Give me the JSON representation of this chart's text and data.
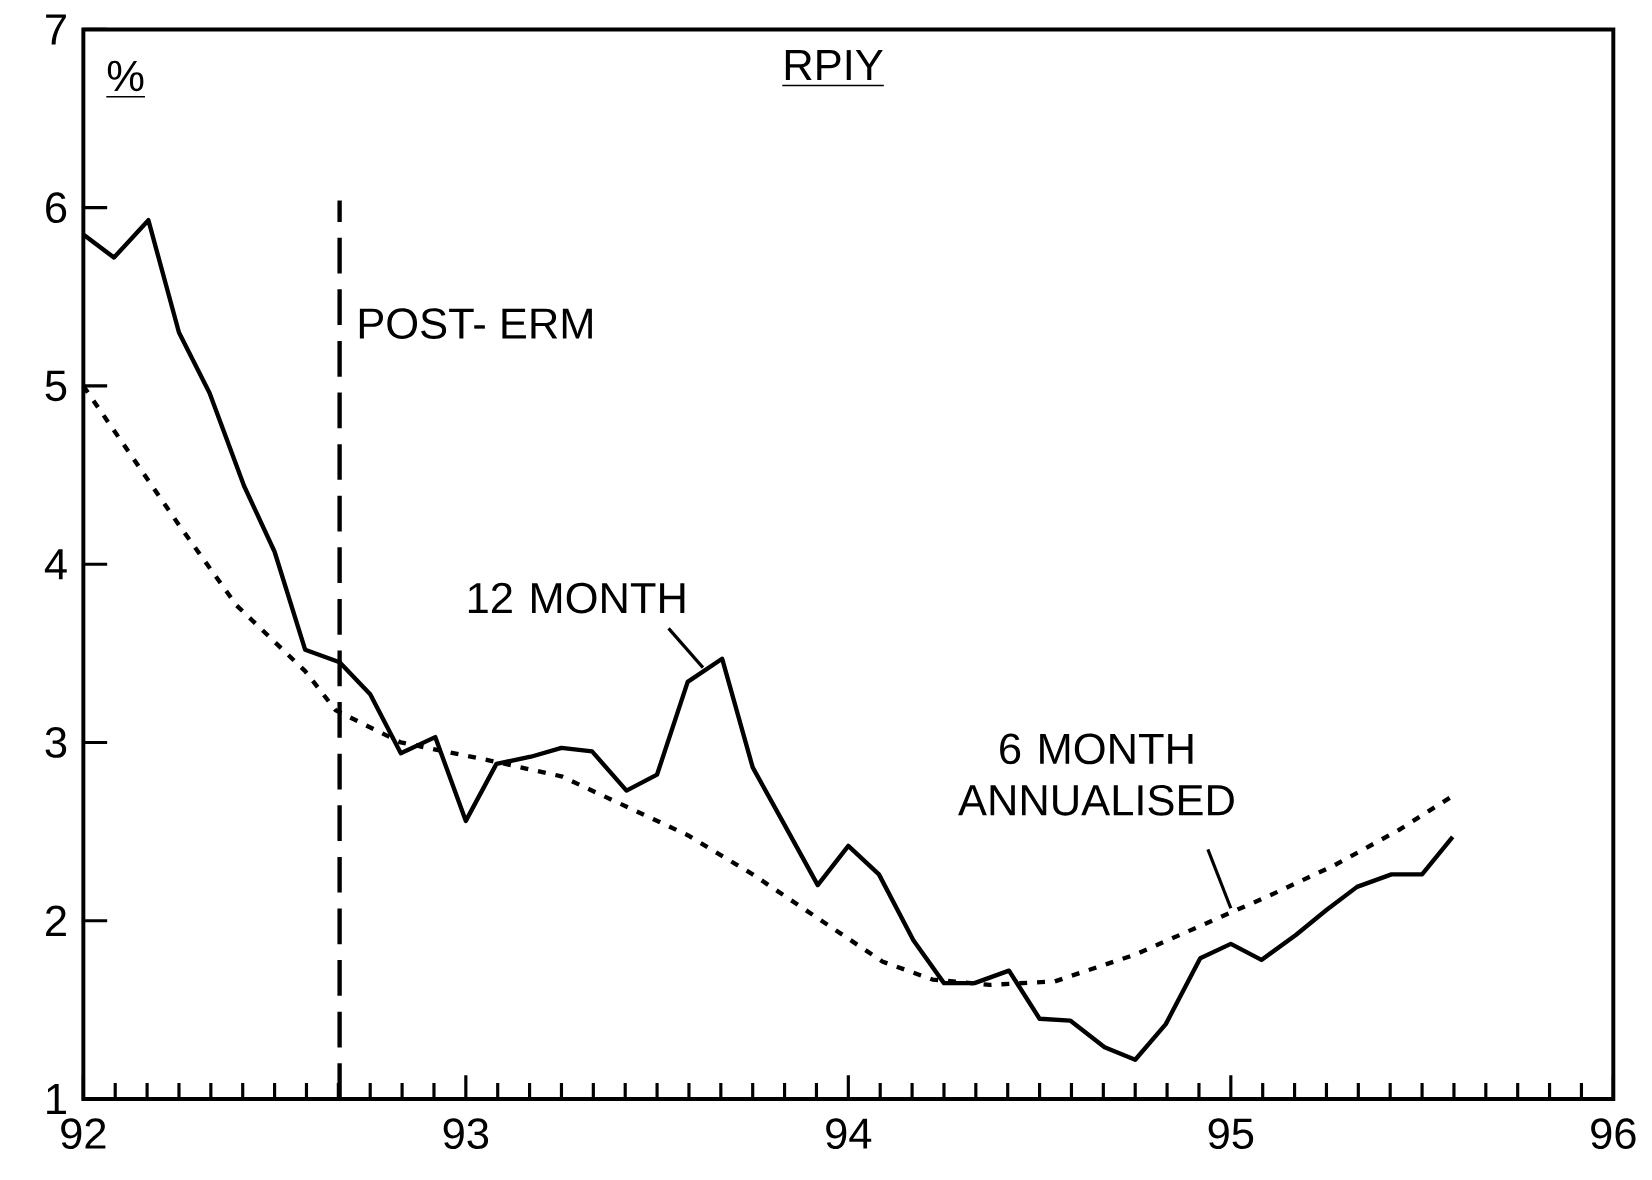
{
  "chart_data": {
    "type": "line",
    "title": "RPIY",
    "ylabel": "%",
    "xlim": [
      92,
      96
    ],
    "xticks": [
      92,
      93,
      94,
      95,
      96
    ],
    "ylim": [
      1,
      7
    ],
    "yticks": [
      1,
      2,
      3,
      4,
      5,
      6,
      7
    ],
    "grid": false,
    "series": [
      {
        "color": "#000000",
        "line_style": "solid",
        "x": [
          92,
          92.08,
          92.17,
          92.25,
          92.33,
          92.42,
          92.5,
          92.58,
          92.67,
          92.75,
          92.83,
          92.92,
          93,
          93.08,
          93.17,
          93.25,
          93.33,
          93.42,
          93.5,
          93.58,
          93.67,
          93.75,
          93.83,
          93.92,
          94,
          94.08,
          94.17,
          94.25,
          94.33,
          94.42,
          94.5,
          94.58,
          94.67,
          94.75,
          94.83,
          94.92,
          95,
          95.08,
          95.17,
          95.25,
          95.33,
          95.42,
          95.5,
          95.58
        ],
        "values": [
          5.85,
          5.72,
          5.93,
          5.3,
          4.96,
          4.44,
          4.07,
          3.52,
          3.45,
          3.27,
          2.94,
          3.03,
          2.56,
          2.88,
          2.92,
          2.97,
          2.95,
          2.73,
          2.82,
          3.34,
          3.47,
          2.86,
          2.55,
          2.2,
          2.42,
          2.26,
          1.89,
          1.65,
          1.65,
          1.72,
          1.45,
          1.44,
          1.29,
          1.22,
          1.42,
          1.79,
          1.87,
          1.78,
          1.92,
          2.06,
          2.19,
          2.26,
          2.26,
          2.47
        ]
      },
      {
        "color": "#000000",
        "line_style": "dotted",
        "x": [
          92,
          92.25,
          92.4,
          92.58,
          92.66,
          92.83,
          93.06,
          93.25,
          93.4,
          93.58,
          93.75,
          93.93,
          94.09,
          94.22,
          94.37,
          94.54,
          94.75,
          94.93,
          95.1,
          95.27,
          95.44,
          95.58
        ],
        "values": [
          5.0,
          4.22,
          3.77,
          3.4,
          3.18,
          3.0,
          2.9,
          2.81,
          2.66,
          2.48,
          2.26,
          2.0,
          1.77,
          1.67,
          1.64,
          1.66,
          1.81,
          1.98,
          2.14,
          2.31,
          2.51,
          2.7
        ]
      }
    ],
    "ref_lines": [
      {
        "axis": "x",
        "value": 92.67,
        "label": "POST- ERM",
        "line_style": "dashed",
        "color": "#000000"
      }
    ],
    "annotations": [
      {
        "text": "12 MONTH",
        "x": 93.62,
        "y": 3.42
      },
      {
        "text": "6 MONTH ANNUALISED",
        "x": 95.0,
        "y": 2.07
      }
    ]
  }
}
